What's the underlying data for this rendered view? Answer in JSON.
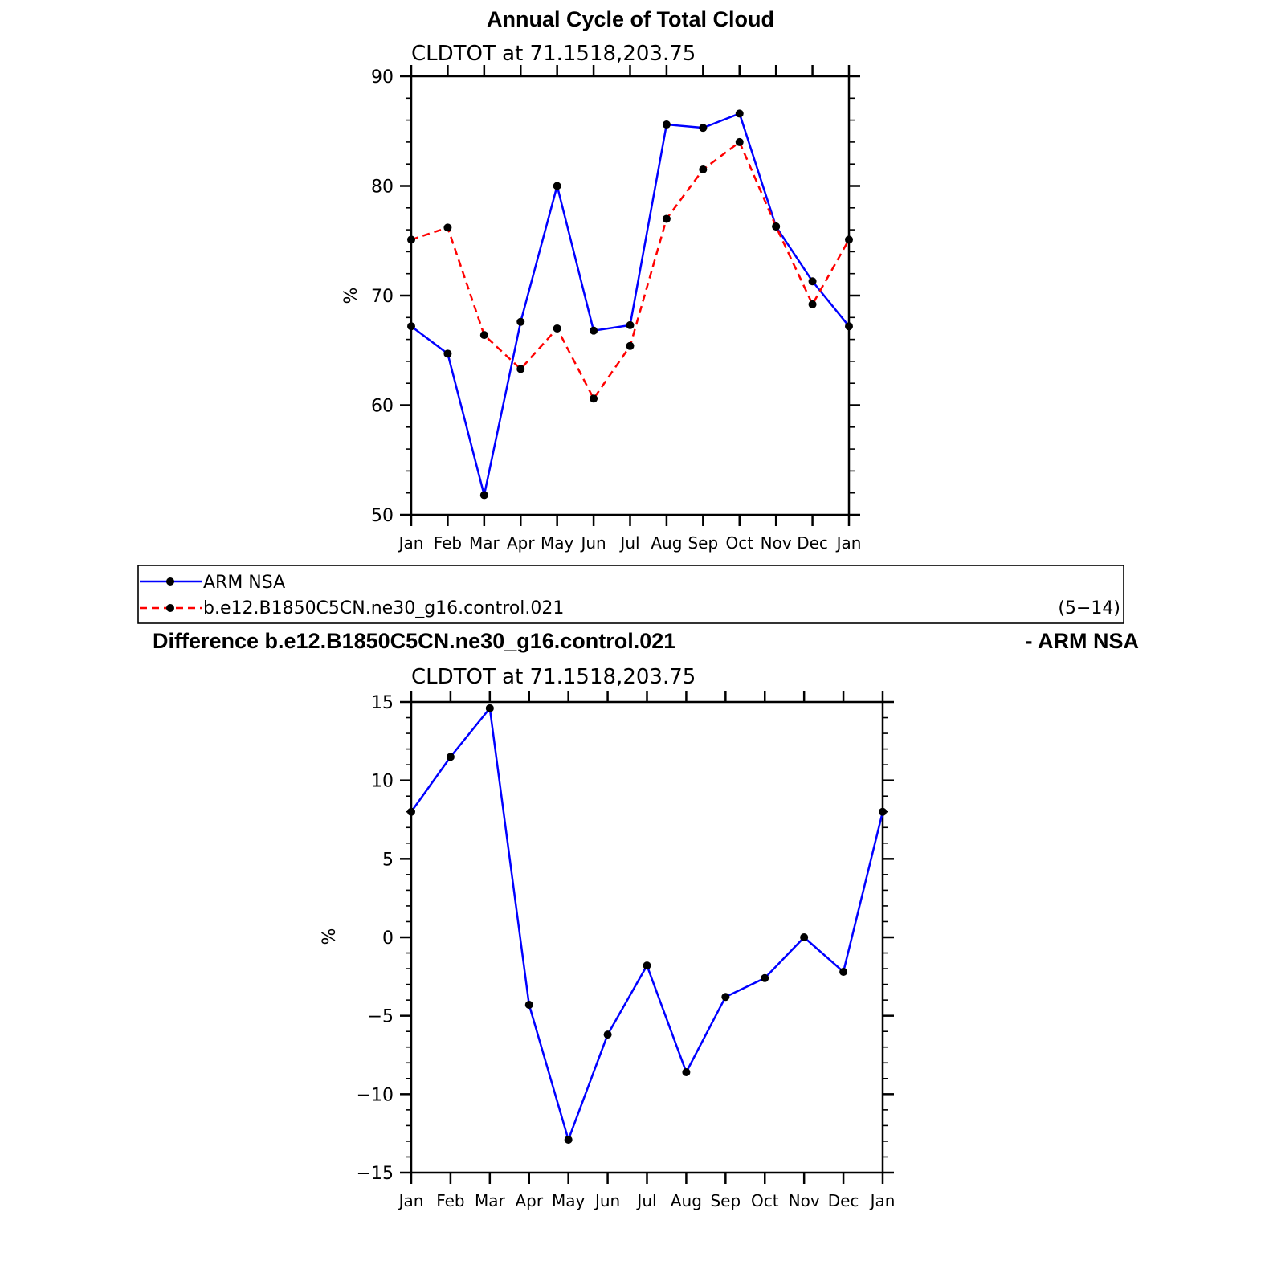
{
  "chart_data": [
    {
      "type": "line",
      "title": "Annual Cycle of Total Cloud",
      "subtitle": "CLDTOT at 71.1518,203.75",
      "xlabel": "",
      "ylabel": "%",
      "categories": [
        "Jan",
        "Feb",
        "Mar",
        "Apr",
        "May",
        "Jun",
        "Jul",
        "Aug",
        "Sep",
        "Oct",
        "Nov",
        "Dec",
        "Jan"
      ],
      "ylim": [
        50,
        90
      ],
      "yticks": [
        50,
        60,
        70,
        80,
        90
      ],
      "series": [
        {
          "name": "ARM NSA",
          "color": "#0000ff",
          "dash": "solid",
          "values": [
            67.2,
            64.7,
            51.8,
            67.6,
            80.0,
            66.8,
            67.3,
            85.6,
            85.3,
            86.6,
            76.3,
            71.3,
            67.2
          ]
        },
        {
          "name": "b.e12.B1850C5CN.ne30_g16.control.021",
          "color": "#ff0000",
          "dash": "dashed",
          "values": [
            75.1,
            76.2,
            66.4,
            63.3,
            67.0,
            60.6,
            65.4,
            77.0,
            81.5,
            84.0,
            76.3,
            69.2,
            75.1
          ]
        }
      ],
      "legend": {
        "placement": "below",
        "note": "(5−14)"
      }
    },
    {
      "type": "line",
      "title": "Difference b.e12.B1850C5CN.ne30_g16.control.021",
      "title_right": "- ARM NSA",
      "subtitle": "CLDTOT at 71.1518,203.75",
      "xlabel": "",
      "ylabel": "%",
      "categories": [
        "Jan",
        "Feb",
        "Mar",
        "Apr",
        "May",
        "Jun",
        "Jul",
        "Aug",
        "Sep",
        "Oct",
        "Nov",
        "Dec",
        "Jan"
      ],
      "ylim": [
        -15,
        15
      ],
      "yticks": [
        -15,
        -10,
        -5,
        0,
        5,
        10,
        15
      ],
      "series": [
        {
          "color": "#0000ff",
          "dash": "solid",
          "values": [
            8.0,
            11.5,
            14.6,
            -4.3,
            -12.9,
            -6.2,
            -1.8,
            -8.6,
            -3.8,
            -2.6,
            0.0,
            -2.2,
            8.0
          ]
        }
      ]
    }
  ]
}
